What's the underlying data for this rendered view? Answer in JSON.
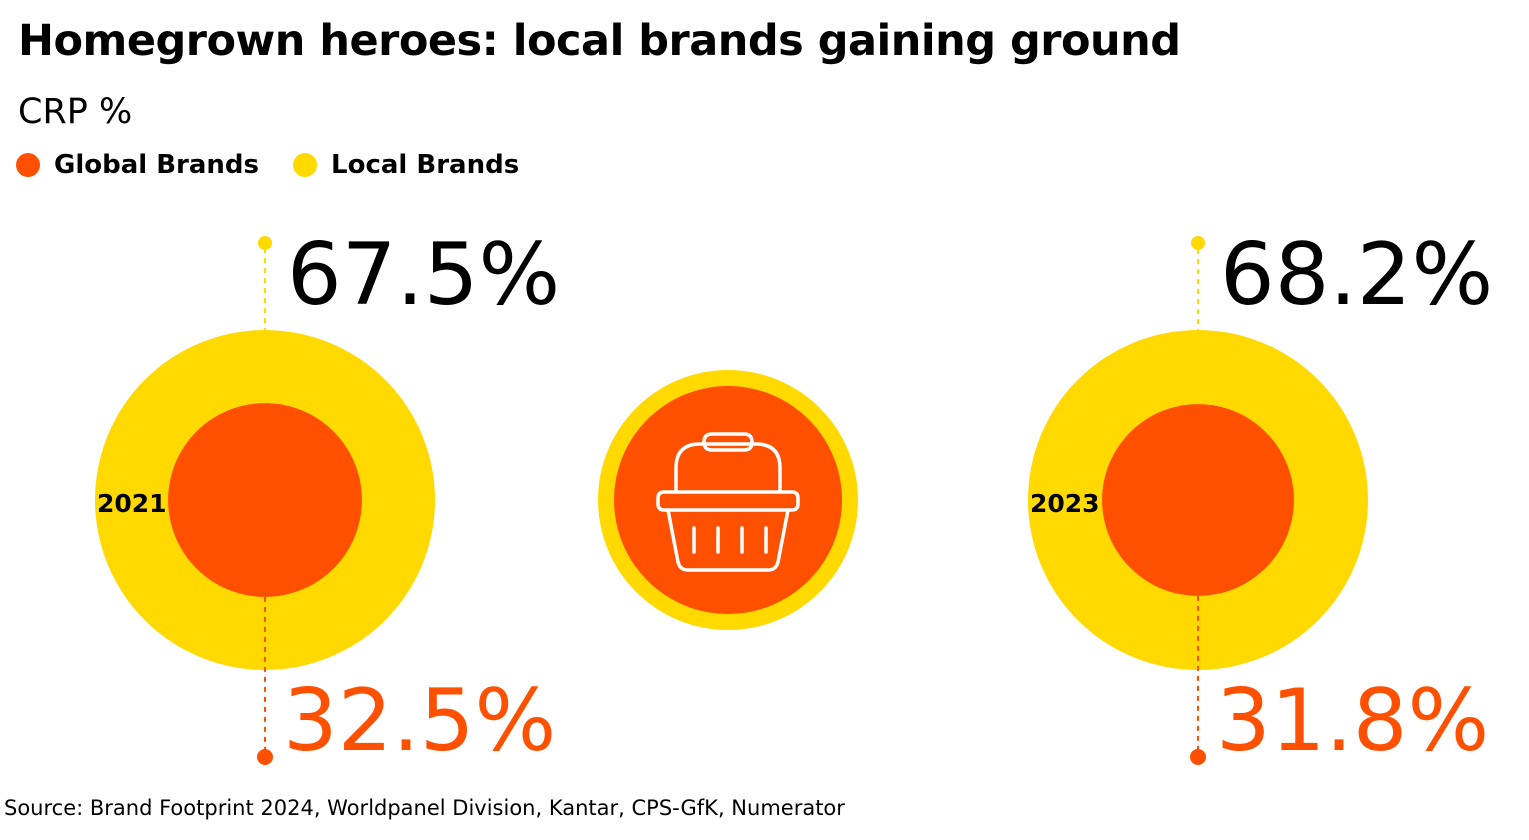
{
  "title": "Homegrown heroes: local brands gaining ground",
  "subtitle": "CRP %",
  "legend": [
    {
      "label": "Global Brands",
      "color": "#FF5000"
    },
    {
      "label": "Local Brands",
      "color": "#FFD900"
    }
  ],
  "source": "Source: Brand Footprint 2024, Worldpanel Division, Kantar, CPS-GfK, Numerator",
  "colors": {
    "global": "#FF5000",
    "local": "#FFD900",
    "text": "#000000"
  },
  "center_icon": "shopping-basket-icon",
  "chart_data": {
    "type": "pie",
    "series": [
      {
        "name": "Global Brands",
        "values": [
          32.5,
          31.8
        ]
      },
      {
        "name": "Local Brands",
        "values": [
          67.5,
          68.2
        ]
      }
    ],
    "categories": [
      "2021",
      "2023"
    ],
    "value_labels": {
      "local": [
        "67.5%",
        "68.2%"
      ],
      "global": [
        "32.5%",
        "31.8%"
      ]
    }
  }
}
